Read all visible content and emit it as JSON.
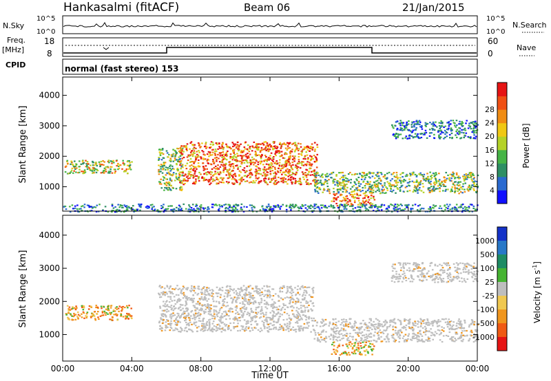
{
  "header": {
    "station": "Hankasalmi (fitACF)",
    "beam": "Beam 06",
    "date": "21/Jan/2015"
  },
  "strip_labels": {
    "nsky": "N.Sky",
    "nsky_top": "10^5",
    "nsky_bot": "10^0",
    "nsearch": "N.Search",
    "nsearch_top": "10^5",
    "nsearch_bot": "10^0",
    "freq": "Freq.",
    "freq_unit": "[MHz]",
    "freq_top": "18",
    "freq_bot": "8",
    "nave": "Nave",
    "nave_top": "60",
    "nave_bot": "0",
    "cpid": "CPID",
    "mode": "normal (fast stereo) 153"
  },
  "chart_data": [
    {
      "type": "heatmap",
      "name": "power",
      "ylabel": "Slant Range [km]",
      "ylim": [
        200,
        4600
      ],
      "yticks": [
        "1000",
        "2000",
        "3000",
        "4000"
      ],
      "xlabel": "",
      "colorbar": {
        "label": "Power [dB]",
        "ticks": [
          "4",
          "8",
          "12",
          "16",
          "20",
          "24",
          "28"
        ],
        "colors": [
          "#1010ff",
          "#2a6ad0",
          "#2e8f64",
          "#46b446",
          "#b4d228",
          "#f0c814",
          "#f08c14",
          "#f05014",
          "#e61414"
        ]
      },
      "echo_regions": [
        {
          "t0": 0.1,
          "t1": 4.0,
          "r0": 1450,
          "r1": 1900,
          "level": "medium-high"
        },
        {
          "t0": 5.5,
          "t1": 6.9,
          "r0": 900,
          "r1": 2300,
          "level": "medium"
        },
        {
          "t0": 6.7,
          "t1": 14.7,
          "r0": 1100,
          "r1": 2500,
          "level": "high"
        },
        {
          "t0": 14.5,
          "t1": 24.0,
          "r0": 800,
          "r1": 1500,
          "level": "medium"
        },
        {
          "t0": 15.5,
          "t1": 18.0,
          "r0": 400,
          "r1": 800,
          "level": "high"
        },
        {
          "t0": 19.0,
          "t1": 24.0,
          "r0": 2600,
          "r1": 3200,
          "level": "low"
        },
        {
          "t0": 0.0,
          "t1": 24.0,
          "r0": 200,
          "r1": 450,
          "level": "low"
        }
      ]
    },
    {
      "type": "heatmap",
      "name": "velocity",
      "ylabel": "Slant Range [km]",
      "ylim": [
        200,
        4600
      ],
      "yticks": [
        "1000",
        "2000",
        "3000",
        "4000"
      ],
      "xlabel": "Time UT",
      "xticks": [
        "00:00",
        "04:00",
        "08:00",
        "12:00",
        "16:00",
        "20:00",
        "00:00"
      ],
      "xlim": [
        0,
        24
      ],
      "colorbar": {
        "label": "Velocity [m s-1]",
        "label_main": "Velocity [m s",
        "label_sup": "-1",
        "label_end": "]",
        "ticks": [
          "1000",
          "500",
          "100",
          "25",
          "-25",
          "-100",
          "-500",
          "-1000"
        ],
        "colors": [
          "#1432c8",
          "#2878c8",
          "#1e8c64",
          "#46b432",
          "#bebebe",
          "#f0c850",
          "#f0961e",
          "#f05a14",
          "#e61414"
        ]
      },
      "echo_regions": [
        {
          "t0": 0.1,
          "t1": 4.0,
          "r0": 1450,
          "r1": 1900,
          "velocity": "negative"
        },
        {
          "t0": 5.5,
          "t1": 14.5,
          "r0": 1100,
          "r1": 2500,
          "velocity": "ground scatter"
        },
        {
          "t0": 14.5,
          "t1": 24.0,
          "r0": 800,
          "r1": 1500,
          "velocity": "ground scatter"
        },
        {
          "t0": 15.5,
          "t1": 18.0,
          "r0": 400,
          "r1": 800,
          "velocity": "negative"
        },
        {
          "t0": 19.0,
          "t1": 24.0,
          "r0": 2600,
          "r1": 3200,
          "velocity": "ground scatter"
        }
      ]
    }
  ]
}
